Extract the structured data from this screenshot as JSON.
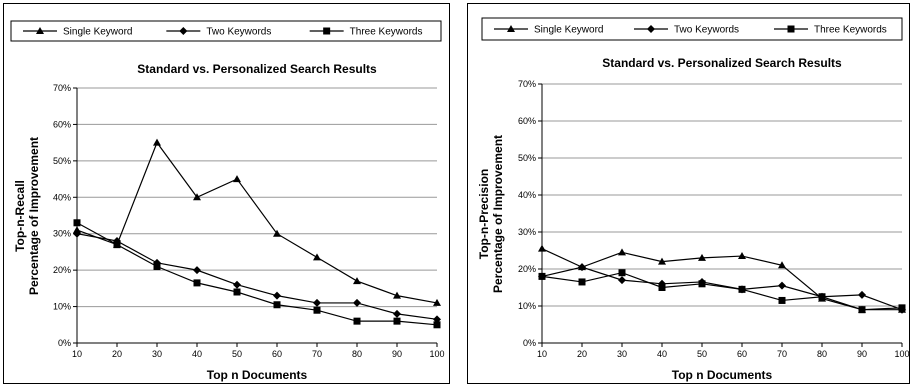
{
  "chart_data": [
    {
      "type": "line",
      "title": "Standard vs. Personalized Search Results",
      "xlabel": "Top n Documents",
      "ylabel": "Top-n-Recall",
      "ylabel2": "Percentage of Improvement",
      "x": [
        10,
        20,
        30,
        40,
        50,
        60,
        70,
        80,
        90,
        100
      ],
      "y_ticks": [
        "0%",
        "10%",
        "20%",
        "30%",
        "40%",
        "50%",
        "60%",
        "70%"
      ],
      "ylim": [
        0,
        70
      ],
      "grid": true,
      "legend": "top",
      "series": [
        {
          "name": "Single Keyword",
          "marker": "triangle",
          "values": [
            31,
            27,
            55,
            40,
            45,
            30,
            23.5,
            17,
            13,
            11
          ]
        },
        {
          "name": "Two Keywords",
          "marker": "diamond",
          "values": [
            30,
            28,
            22,
            20,
            16,
            13,
            11,
            11,
            8,
            6.5
          ]
        },
        {
          "name": "Three Keywords",
          "marker": "square",
          "values": [
            33,
            27,
            21,
            16.5,
            14,
            10.5,
            9,
            6,
            6,
            5
          ]
        }
      ]
    },
    {
      "type": "line",
      "title": "Standard vs. Personalized Search Results",
      "xlabel": "Top n Documents",
      "ylabel": "Top-n-Precision",
      "ylabel2": "Percentage of Improvement",
      "x": [
        10,
        20,
        30,
        40,
        50,
        60,
        70,
        80,
        90,
        100
      ],
      "y_ticks": [
        "0%",
        "10%",
        "20%",
        "30%",
        "40%",
        "50%",
        "60%",
        "70%"
      ],
      "ylim": [
        0,
        70
      ],
      "grid": true,
      "legend": "top",
      "series": [
        {
          "name": "Single Keyword",
          "marker": "triangle",
          "values": [
            25.5,
            20.5,
            24.5,
            22,
            23,
            23.5,
            21,
            12,
            9,
            9
          ]
        },
        {
          "name": "Two Keywords",
          "marker": "diamond",
          "values": [
            18,
            20.5,
            17,
            16,
            16.5,
            14.5,
            15.5,
            12.5,
            13,
            9
          ]
        },
        {
          "name": "Three Keywords",
          "marker": "square",
          "values": [
            18,
            16.5,
            19,
            15,
            16,
            14.5,
            11.5,
            12.5,
            9,
            9.5
          ]
        }
      ]
    }
  ]
}
